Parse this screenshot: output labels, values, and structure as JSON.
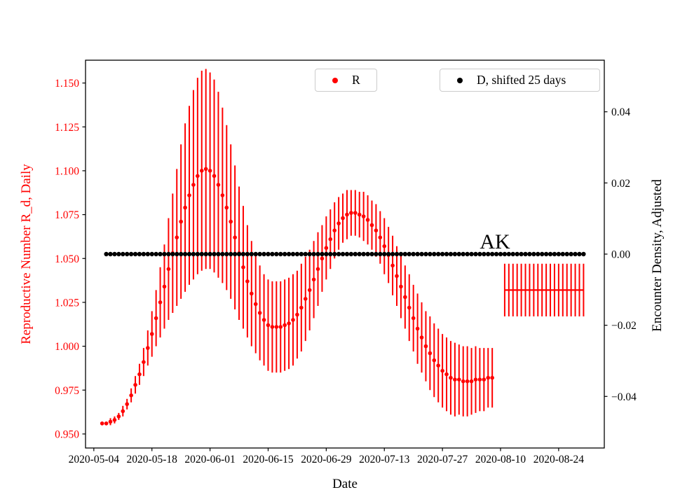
{
  "chart_data": {
    "type": "scatter",
    "title": "",
    "xlabel": "Date",
    "ylabel_left": "Reproductive Number R_d, Daily",
    "ylabel_right": "Encounter Density, Adjusted",
    "annotation": {
      "text": "AK",
      "x_date": "2020-08-05",
      "y_left": 1.054
    },
    "legend": [
      {
        "label": "R",
        "color": "#ff0000"
      },
      {
        "label": "D, shifted 25 days",
        "color": "#000000"
      }
    ],
    "grid": false,
    "x_origin": "2020-05-04",
    "x_domain_days": [
      -2,
      123
    ],
    "x_tick_dates": [
      "2020-05-04",
      "2020-05-18",
      "2020-06-01",
      "2020-06-15",
      "2020-06-29",
      "2020-07-13",
      "2020-07-27",
      "2020-08-10",
      "2020-08-24"
    ],
    "ylim_left": [
      0.942,
      1.163
    ],
    "ytick_values_left": [
      0.95,
      0.975,
      1.0,
      1.025,
      1.05,
      1.075,
      1.1,
      1.125,
      1.15
    ],
    "ytick_labels_left": [
      "0.950",
      "0.975",
      "1.000",
      "1.025",
      "1.050",
      "1.075",
      "1.100",
      "1.125",
      "1.150"
    ],
    "ylim_right": [
      -0.0545,
      0.0545
    ],
    "ytick_values_right": [
      0.04,
      0.02,
      0.0,
      -0.02,
      -0.04
    ],
    "ytick_labels_right": [
      "0.04",
      "0.02",
      "0.00",
      "−0.02",
      "−0.04"
    ],
    "series": [
      {
        "name": "R",
        "axis": "left",
        "color": "#ff0000",
        "style": "errorbar-dots",
        "start_date": "2020-05-06",
        "cadence_days": 1,
        "values": [
          0.956,
          0.956,
          0.957,
          0.958,
          0.96,
          0.963,
          0.967,
          0.972,
          0.978,
          0.984,
          0.991,
          0.999,
          1.007,
          1.016,
          1.025,
          1.034,
          1.044,
          1.053,
          1.062,
          1.071,
          1.079,
          1.086,
          1.092,
          1.097,
          1.1,
          1.101,
          1.1,
          1.097,
          1.092,
          1.086,
          1.079,
          1.071,
          1.062,
          1.053,
          1.045,
          1.037,
          1.03,
          1.024,
          1.019,
          1.015,
          1.012,
          1.011,
          1.011,
          1.011,
          1.012,
          1.013,
          1.015,
          1.018,
          1.022,
          1.027,
          1.032,
          1.038,
          1.044,
          1.05,
          1.056,
          1.061,
          1.066,
          1.07,
          1.073,
          1.075,
          1.076,
          1.076,
          1.075,
          1.074,
          1.072,
          1.069,
          1.066,
          1.062,
          1.057,
          1.052,
          1.046,
          1.04,
          1.034,
          1.028,
          1.022,
          1.016,
          1.01,
          1.005,
          1.0,
          0.996,
          0.992,
          0.989,
          0.986,
          0.984,
          0.982,
          0.981,
          0.981,
          0.98,
          0.98,
          0.98,
          0.981,
          0.981,
          0.981,
          0.982,
          0.982
        ],
        "err": [
          0.001,
          0.001,
          0.002,
          0.002,
          0.002,
          0.003,
          0.003,
          0.004,
          0.005,
          0.006,
          0.008,
          0.01,
          0.013,
          0.016,
          0.02,
          0.024,
          0.029,
          0.034,
          0.039,
          0.044,
          0.048,
          0.051,
          0.054,
          0.056,
          0.057,
          0.057,
          0.056,
          0.055,
          0.053,
          0.05,
          0.047,
          0.044,
          0.041,
          0.038,
          0.035,
          0.032,
          0.03,
          0.028,
          0.027,
          0.026,
          0.026,
          0.026,
          0.026,
          0.026,
          0.026,
          0.026,
          0.026,
          0.025,
          0.025,
          0.024,
          0.023,
          0.022,
          0.021,
          0.019,
          0.018,
          0.017,
          0.016,
          0.015,
          0.014,
          0.014,
          0.013,
          0.013,
          0.013,
          0.014,
          0.014,
          0.014,
          0.015,
          0.015,
          0.016,
          0.016,
          0.017,
          0.017,
          0.018,
          0.018,
          0.019,
          0.019,
          0.02,
          0.02,
          0.02,
          0.021,
          0.021,
          0.021,
          0.021,
          0.021,
          0.021,
          0.021,
          0.02,
          0.02,
          0.02,
          0.019,
          0.019,
          0.018,
          0.018,
          0.017,
          0.017
        ]
      },
      {
        "name": "R projection band",
        "axis": "left",
        "color": "#ff0000",
        "style": "errorbar-flat",
        "start_date": "2020-08-11",
        "end_date": "2020-08-30",
        "cadence_days": 1,
        "value": 1.032,
        "err": 0.015
      },
      {
        "name": "D, shifted 25 days",
        "axis": "right",
        "color": "#000000",
        "style": "dots",
        "start_date": "2020-05-07",
        "end_date": "2020-08-30",
        "cadence_days": 1,
        "value": 0.0
      }
    ]
  }
}
